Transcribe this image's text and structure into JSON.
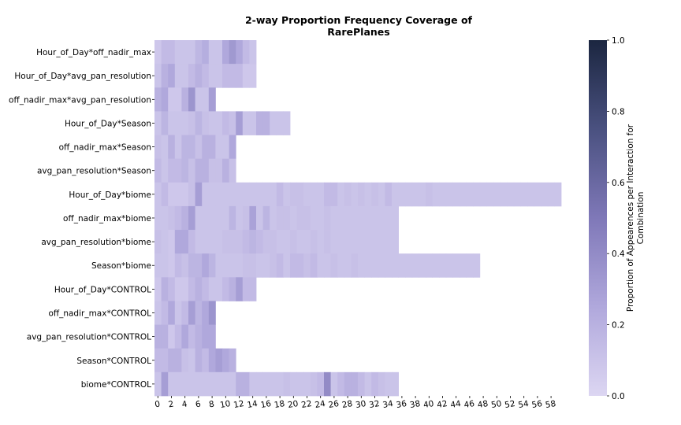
{
  "chart_data": {
    "type": "heatmap",
    "title_lines": [
      "2-way Proportion Frequency Coverage of",
      "RarePlanes"
    ],
    "xlabel": "",
    "ylabel": "",
    "rows": [
      "Hour_of_Day*off_nadir_max",
      "Hour_of_Day*avg_pan_resolution",
      "off_nadir_max*avg_pan_resolution",
      "Hour_of_Day*Season",
      "off_nadir_max*Season",
      "avg_pan_resolution*Season",
      "Hour_of_Day*biome",
      "off_nadir_max*biome",
      "avg_pan_resolution*biome",
      "Season*biome",
      "Hour_of_Day*CONTROL",
      "off_nadir_max*CONTROL",
      "avg_pan_resolution*CONTROL",
      "Season*CONTROL",
      "biome*CONTROL"
    ],
    "x_tick_labels": [
      "0",
      "2",
      "4",
      "6",
      "8",
      "10",
      "12",
      "14",
      "16",
      "18",
      "20",
      "22",
      "24",
      "26",
      "28",
      "30",
      "32",
      "34",
      "36",
      "38",
      "40",
      "42",
      "44",
      "46",
      "48",
      "50",
      "52",
      "54",
      "56",
      "58"
    ],
    "n_columns": 60,
    "values": [
      [
        0.08,
        0.15,
        0.15,
        0.1,
        0.1,
        0.1,
        0.17,
        0.22,
        0.1,
        0.1,
        0.25,
        0.33,
        0.25,
        0.15,
        0.1
      ],
      [
        0.1,
        0.2,
        0.25,
        0.1,
        0.1,
        0.15,
        0.2,
        0.15,
        0.1,
        0.1,
        0.15,
        0.15,
        0.15,
        0.08,
        0.08
      ],
      [
        0.2,
        0.25,
        0.08,
        0.08,
        0.2,
        0.35,
        0.1,
        0.1,
        0.3
      ],
      [
        0.1,
        0.18,
        0.1,
        0.1,
        0.1,
        0.12,
        0.18,
        0.12,
        0.1,
        0.1,
        0.15,
        0.12,
        0.3,
        0.1,
        0.1,
        0.2,
        0.2,
        0.1,
        0.1,
        0.1
      ],
      [
        0.12,
        0.1,
        0.2,
        0.1,
        0.18,
        0.18,
        0.12,
        0.2,
        0.2,
        0.1,
        0.1,
        0.25
      ],
      [
        0.15,
        0.1,
        0.15,
        0.15,
        0.18,
        0.12,
        0.2,
        0.2,
        0.12,
        0.12,
        0.2,
        0.12
      ],
      [
        0.1,
        0.15,
        0.08,
        0.08,
        0.08,
        0.12,
        0.3,
        0.1,
        0.1,
        0.1,
        0.1,
        0.1,
        0.1,
        0.1,
        0.1,
        0.1,
        0.1,
        0.1,
        0.15,
        0.1,
        0.12,
        0.12,
        0.1,
        0.1,
        0.1,
        0.15,
        0.15,
        0.1,
        0.12,
        0.1,
        0.12,
        0.1,
        0.12,
        0.1,
        0.15,
        0.1,
        0.1,
        0.1,
        0.1,
        0.1,
        0.12,
        0.1,
        0.1,
        0.1,
        0.1,
        0.1,
        0.1,
        0.1,
        0.1,
        0.1,
        0.1,
        0.1,
        0.1,
        0.1,
        0.1,
        0.1,
        0.1,
        0.1,
        0.1,
        0.1
      ],
      [
        0.1,
        0.1,
        0.12,
        0.15,
        0.2,
        0.3,
        0.1,
        0.1,
        0.1,
        0.1,
        0.1,
        0.18,
        0.1,
        0.12,
        0.28,
        0.1,
        0.18,
        0.1,
        0.12,
        0.12,
        0.1,
        0.12,
        0.12,
        0.1,
        0.1,
        0.12,
        0.1,
        0.1,
        0.1,
        0.1,
        0.1,
        0.1,
        0.1,
        0.1,
        0.1,
        0.1
      ],
      [
        0.12,
        0.1,
        0.08,
        0.25,
        0.25,
        0.15,
        0.1,
        0.1,
        0.1,
        0.1,
        0.12,
        0.12,
        0.12,
        0.15,
        0.18,
        0.15,
        0.12,
        0.12,
        0.1,
        0.1,
        0.12,
        0.1,
        0.1,
        0.12,
        0.1,
        0.12,
        0.1,
        0.1,
        0.1,
        0.1,
        0.1,
        0.1,
        0.1,
        0.1,
        0.1,
        0.1
      ],
      [
        0.1,
        0.1,
        0.08,
        0.15,
        0.12,
        0.18,
        0.18,
        0.25,
        0.18,
        0.1,
        0.1,
        0.1,
        0.1,
        0.12,
        0.12,
        0.1,
        0.1,
        0.12,
        0.15,
        0.1,
        0.15,
        0.15,
        0.12,
        0.15,
        0.1,
        0.1,
        0.12,
        0.1,
        0.1,
        0.12,
        0.1,
        0.1,
        0.1,
        0.1,
        0.1,
        0.1,
        0.1,
        0.1,
        0.1,
        0.1,
        0.1,
        0.1,
        0.1,
        0.1,
        0.1,
        0.1,
        0.1,
        0.1
      ],
      [
        0.08,
        0.2,
        0.15,
        0.08,
        0.08,
        0.15,
        0.2,
        0.15,
        0.1,
        0.1,
        0.15,
        0.2,
        0.3,
        0.15,
        0.15
      ],
      [
        0.1,
        0.15,
        0.25,
        0.1,
        0.15,
        0.3,
        0.18,
        0.25,
        0.35
      ],
      [
        0.2,
        0.2,
        0.08,
        0.15,
        0.25,
        0.15,
        0.2,
        0.25,
        0.25
      ],
      [
        0.15,
        0.15,
        0.2,
        0.2,
        0.12,
        0.1,
        0.2,
        0.15,
        0.25,
        0.3,
        0.25,
        0.2
      ],
      [
        0.1,
        0.3,
        0.1,
        0.1,
        0.1,
        0.1,
        0.1,
        0.1,
        0.1,
        0.1,
        0.1,
        0.1,
        0.2,
        0.2,
        0.1,
        0.1,
        0.1,
        0.1,
        0.1,
        0.12,
        0.1,
        0.1,
        0.1,
        0.12,
        0.15,
        0.4,
        0.1,
        0.15,
        0.2,
        0.2,
        0.15,
        0.1,
        0.15,
        0.12,
        0.1,
        0.1
      ]
    ],
    "colorbar": {
      "label_lines": [
        "Proportion of Appearences per Interaction for",
        "Combination"
      ],
      "ticks": [
        "0.0",
        "0.2",
        "0.4",
        "0.6",
        "0.8",
        "1.0"
      ],
      "vmin": 0.0,
      "vmax": 1.0
    },
    "colors": {
      "low": "#dcd6f2",
      "mid1": "#b0a8dc",
      "mid2": "#7f78b8",
      "mid3": "#4a5180",
      "high": "#1b2640"
    }
  }
}
